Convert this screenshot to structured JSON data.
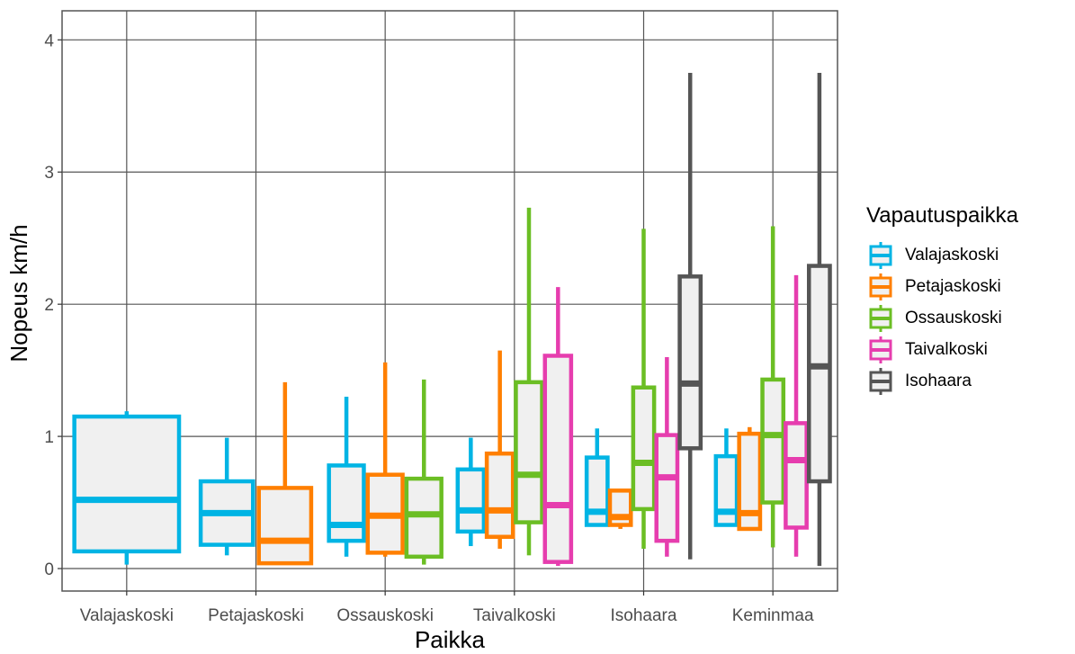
{
  "chart_data": {
    "type": "box",
    "title": "",
    "xlabel": "Paikka",
    "ylabel": "Nopeus km/h",
    "ylim": [
      -0.17,
      4.22
    ],
    "yticks": [
      0,
      1,
      2,
      3,
      4
    ],
    "grid": true,
    "legend_position": "right",
    "legend_title": "Vapautuspaikka",
    "categories": [
      "Valajaskoski",
      "Petajaskoski",
      "Ossauskoski",
      "Taivalkoski",
      "Isohaara",
      "Keminmaa"
    ],
    "series": [
      {
        "name": "Valajaskoski",
        "color": "#00B4E4"
      },
      {
        "name": "Petajaskoski",
        "color": "#FF7F00"
      },
      {
        "name": "Ossauskoski",
        "color": "#6BBE24"
      },
      {
        "name": "Taivalkoski",
        "color": "#E63DAE"
      },
      {
        "name": "Isohaara",
        "color": "#555555"
      }
    ],
    "boxes": [
      {
        "category": 0,
        "series": 0,
        "min": 0.03,
        "q1": 0.13,
        "median": 0.52,
        "q3": 1.15,
        "max": 1.19
      },
      {
        "category": 1,
        "series": 0,
        "min": 0.1,
        "q1": 0.18,
        "median": 0.42,
        "q3": 0.66,
        "max": 0.99
      },
      {
        "category": 1,
        "series": 1,
        "min": 0.03,
        "q1": 0.04,
        "median": 0.21,
        "q3": 0.61,
        "max": 1.41
      },
      {
        "category": 2,
        "series": 0,
        "min": 0.09,
        "q1": 0.21,
        "median": 0.33,
        "q3": 0.78,
        "max": 1.3
      },
      {
        "category": 2,
        "series": 1,
        "min": 0.09,
        "q1": 0.12,
        "median": 0.4,
        "q3": 0.71,
        "max": 1.56
      },
      {
        "category": 2,
        "series": 2,
        "min": 0.03,
        "q1": 0.09,
        "median": 0.41,
        "q3": 0.68,
        "max": 1.43
      },
      {
        "category": 3,
        "series": 0,
        "min": 0.17,
        "q1": 0.28,
        "median": 0.44,
        "q3": 0.75,
        "max": 0.99
      },
      {
        "category": 3,
        "series": 1,
        "min": 0.15,
        "q1": 0.24,
        "median": 0.44,
        "q3": 0.87,
        "max": 1.65
      },
      {
        "category": 3,
        "series": 2,
        "min": 0.1,
        "q1": 0.35,
        "median": 0.71,
        "q3": 1.41,
        "max": 2.73
      },
      {
        "category": 3,
        "series": 3,
        "min": 0.02,
        "q1": 0.05,
        "median": 0.48,
        "q3": 1.61,
        "max": 2.13
      },
      {
        "category": 4,
        "series": 0,
        "min": 0.33,
        "q1": 0.33,
        "median": 0.43,
        "q3": 0.84,
        "max": 1.06
      },
      {
        "category": 4,
        "series": 1,
        "min": 0.3,
        "q1": 0.33,
        "median": 0.39,
        "q3": 0.59,
        "max": 0.6
      },
      {
        "category": 4,
        "series": 2,
        "min": 0.15,
        "q1": 0.45,
        "median": 0.8,
        "q3": 1.37,
        "max": 2.57
      },
      {
        "category": 4,
        "series": 3,
        "min": 0.09,
        "q1": 0.21,
        "median": 0.69,
        "q3": 1.01,
        "max": 1.6
      },
      {
        "category": 4,
        "series": 4,
        "min": 0.07,
        "q1": 0.91,
        "median": 1.4,
        "q3": 2.21,
        "max": 3.75
      },
      {
        "category": 5,
        "series": 0,
        "min": 0.33,
        "q1": 0.33,
        "median": 0.43,
        "q3": 0.85,
        "max": 1.06
      },
      {
        "category": 5,
        "series": 1,
        "min": 0.3,
        "q1": 0.3,
        "median": 0.42,
        "q3": 1.02,
        "max": 1.07
      },
      {
        "category": 5,
        "series": 2,
        "min": 0.16,
        "q1": 0.5,
        "median": 1.01,
        "q3": 1.43,
        "max": 2.59
      },
      {
        "category": 5,
        "series": 3,
        "min": 0.09,
        "q1": 0.31,
        "median": 0.82,
        "q3": 1.1,
        "max": 2.22
      },
      {
        "category": 5,
        "series": 4,
        "min": 0.02,
        "q1": 0.66,
        "median": 1.53,
        "q3": 2.29,
        "max": 3.75
      }
    ]
  }
}
